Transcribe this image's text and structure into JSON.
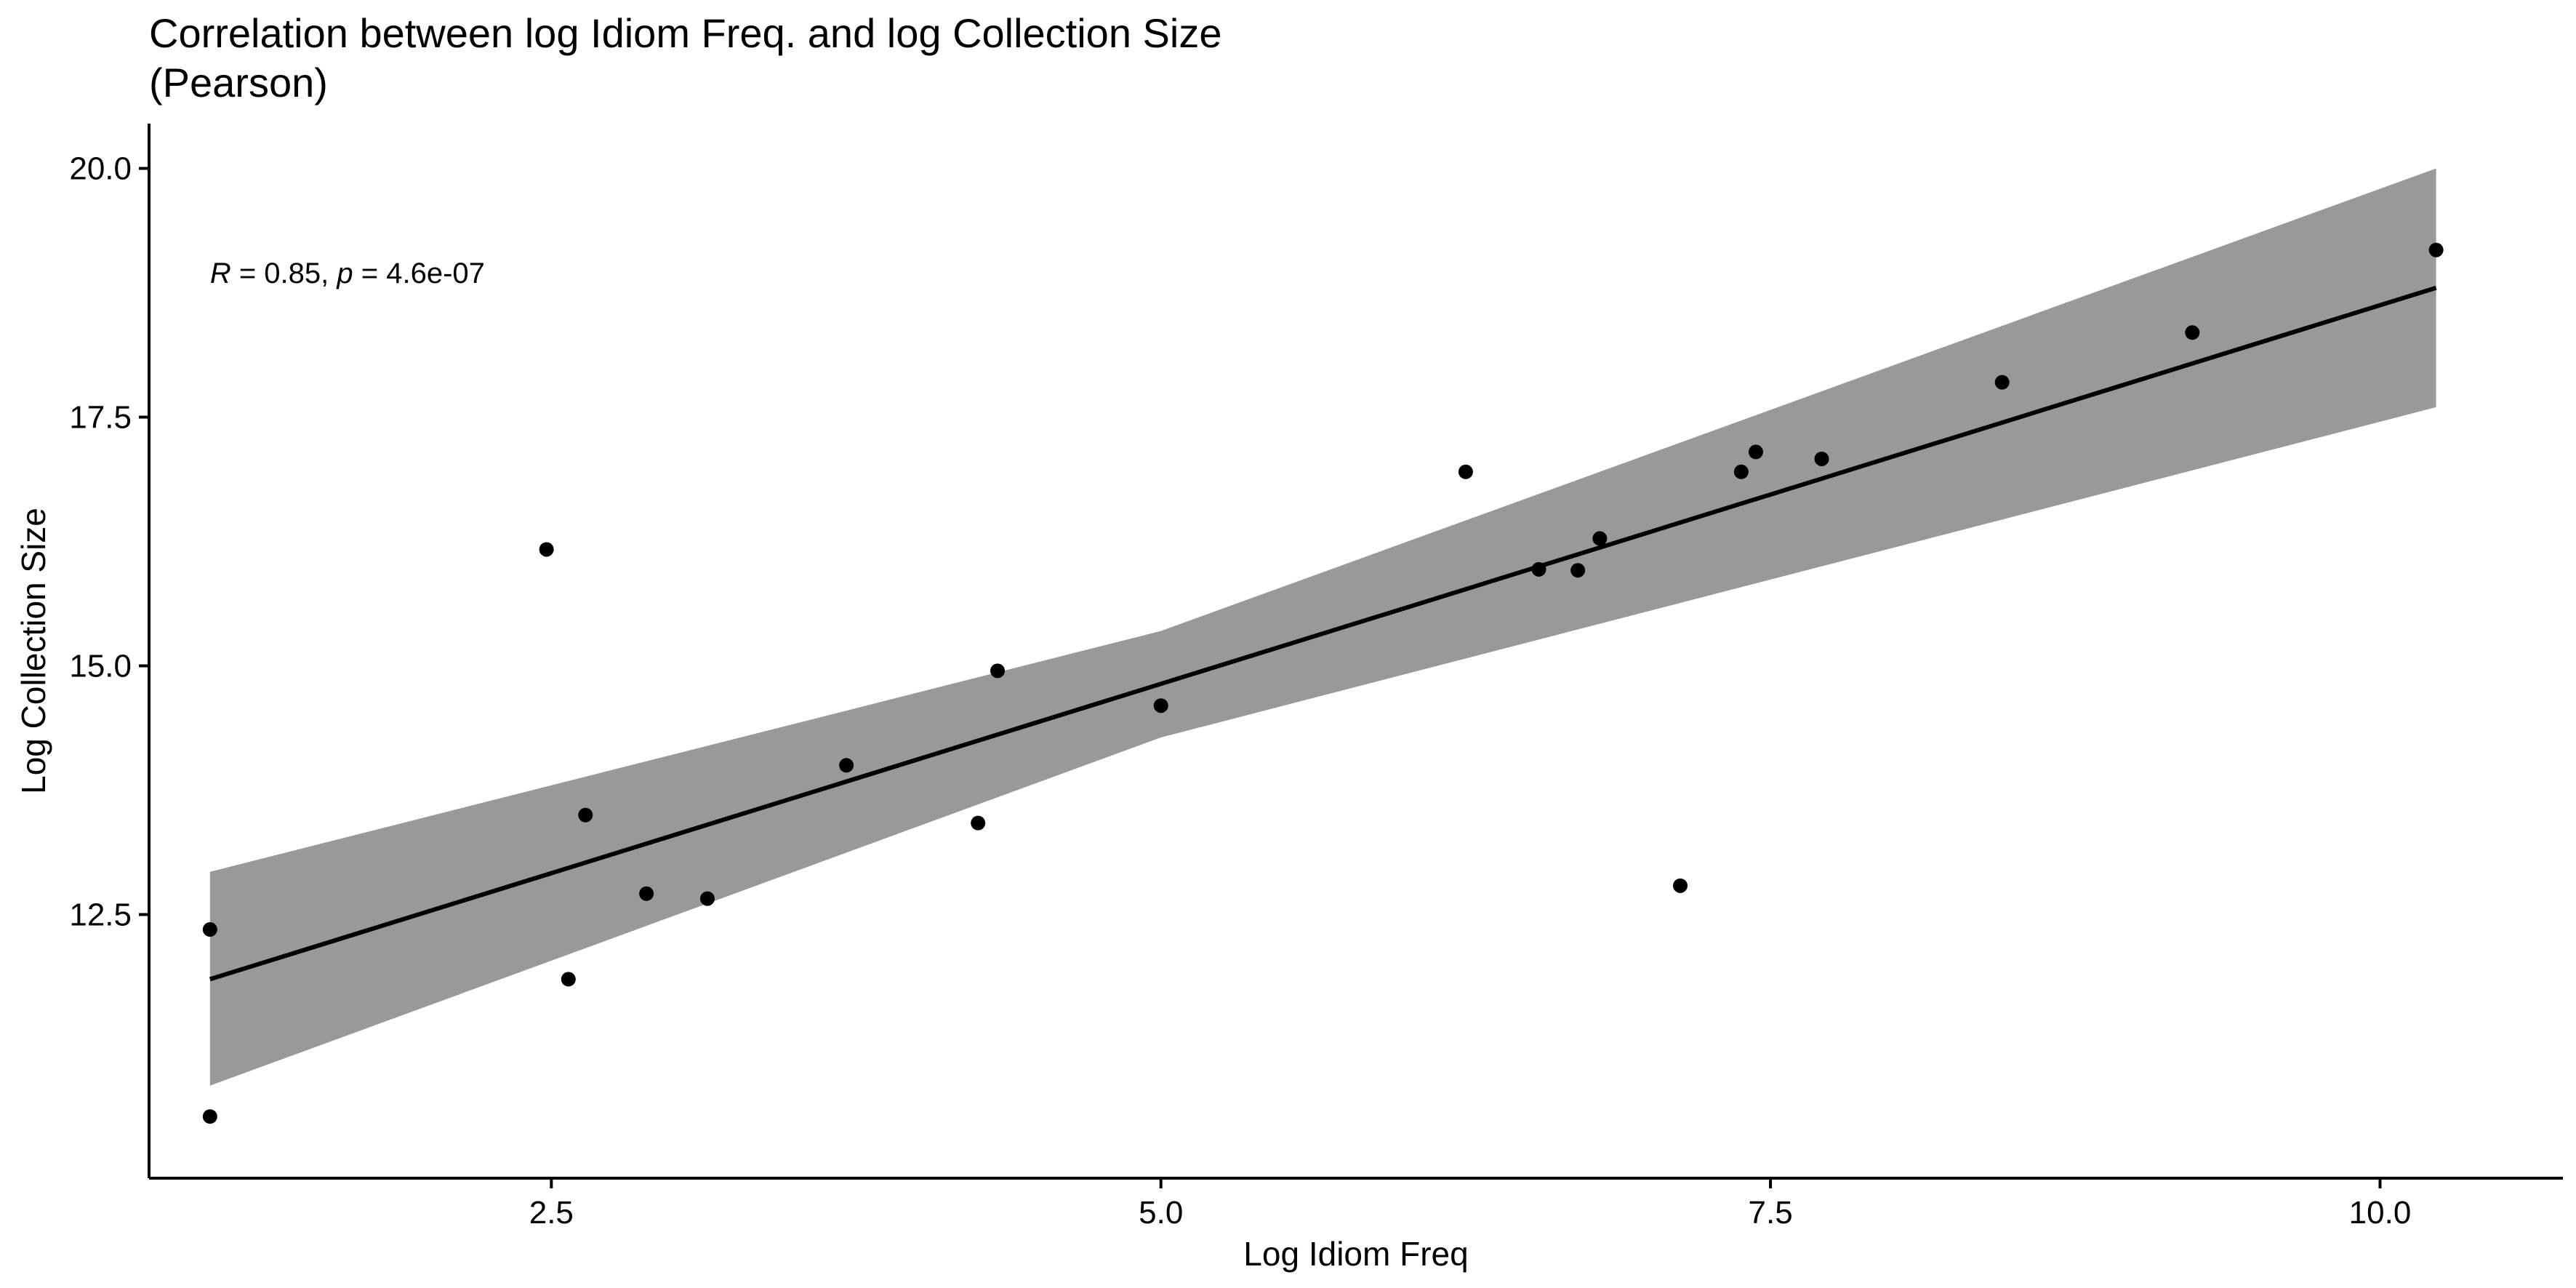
{
  "chart_data": {
    "type": "scatter",
    "title_lines": [
      "Correlation between log Idiom Freq. and log Collection Size",
      "(Pearson)"
    ],
    "xlabel": "Log Idiom Freq",
    "ylabel": "Log Collection Size",
    "xlim": [
      0.85,
      10.75
    ],
    "ylim": [
      9.85,
      20.45
    ],
    "x_ticks": [
      2.5,
      5.0,
      7.5,
      10.0
    ],
    "x_tick_labels": [
      "2.5",
      "5.0",
      "7.5",
      "10.0"
    ],
    "y_ticks": [
      12.5,
      15.0,
      17.5,
      20.0
    ],
    "y_tick_labels": [
      "12.5",
      "15.0",
      "17.5",
      "20.0"
    ],
    "grid": false,
    "annotation": {
      "r_symbol": "R",
      "r_text": " = 0.85, ",
      "p_symbol": "p",
      "p_text": " = 4.6e-07",
      "x": 1.1,
      "y": 18.85
    },
    "points": [
      {
        "x": 1.1,
        "y": 12.35
      },
      {
        "x": 1.1,
        "y": 10.47
      },
      {
        "x": 2.48,
        "y": 16.17
      },
      {
        "x": 2.57,
        "y": 11.85
      },
      {
        "x": 2.64,
        "y": 13.5
      },
      {
        "x": 2.89,
        "y": 12.71
      },
      {
        "x": 3.14,
        "y": 12.66
      },
      {
        "x": 3.71,
        "y": 14.0
      },
      {
        "x": 4.25,
        "y": 13.42
      },
      {
        "x": 4.33,
        "y": 14.95
      },
      {
        "x": 5.0,
        "y": 14.6
      },
      {
        "x": 6.25,
        "y": 16.95
      },
      {
        "x": 6.55,
        "y": 15.97
      },
      {
        "x": 6.71,
        "y": 15.96
      },
      {
        "x": 6.8,
        "y": 16.28
      },
      {
        "x": 7.13,
        "y": 12.79
      },
      {
        "x": 7.38,
        "y": 16.95
      },
      {
        "x": 7.44,
        "y": 17.15
      },
      {
        "x": 7.71,
        "y": 17.08
      },
      {
        "x": 8.45,
        "y": 17.85
      },
      {
        "x": 9.23,
        "y": 18.35
      },
      {
        "x": 10.23,
        "y": 19.18
      }
    ],
    "regression_line": {
      "x": [
        1.1,
        10.23
      ],
      "y": [
        11.85,
        18.8
      ]
    },
    "confidence_band": {
      "x": [
        1.1,
        5.0,
        10.23
      ],
      "upper": [
        12.93,
        15.35,
        20.0
      ],
      "lower": [
        10.78,
        14.28,
        17.6
      ]
    },
    "colors": {
      "points": "#000000",
      "line": "#000000",
      "band": "#999999",
      "axis": "#000000"
    }
  }
}
